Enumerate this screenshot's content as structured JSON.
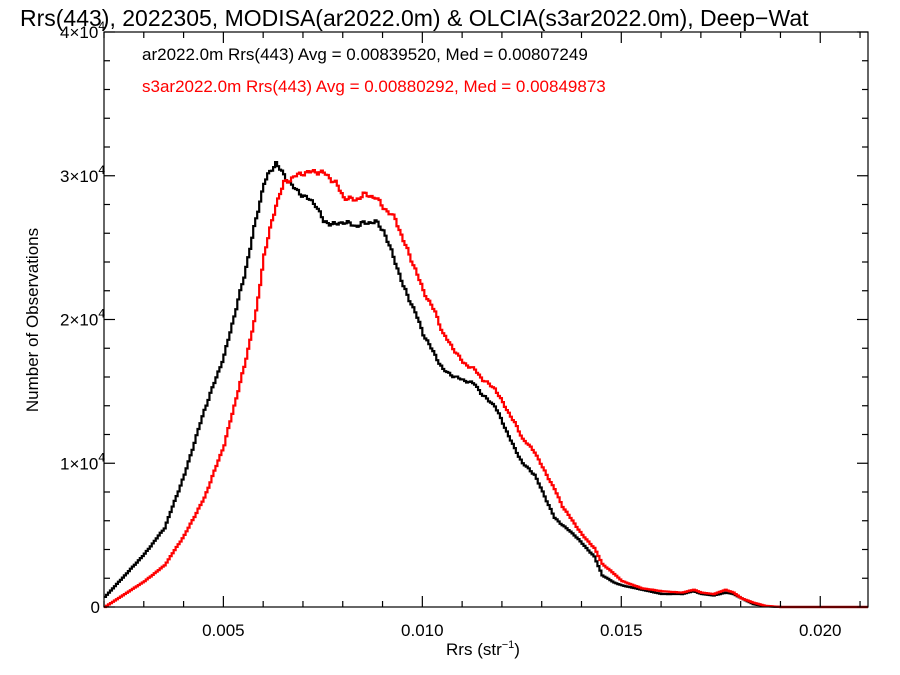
{
  "chart_data": {
    "type": "line",
    "step": true,
    "title": "Rrs(443), 2022305, MODISA(ar2022.0m) & OLCIA(s3ar2022.0m), Deep−Wat",
    "xlabel": "Rrs (str",
    "xlabel_sup": "−1",
    "xlabel_end": ")",
    "ylabel": "Number of Observations",
    "xlim": [
      0.002,
      0.0212
    ],
    "ylim": [
      0,
      40000
    ],
    "xticks": [
      {
        "v": 0.005,
        "label": "0.005"
      },
      {
        "v": 0.01,
        "label": "0.010"
      },
      {
        "v": 0.015,
        "label": "0.015"
      },
      {
        "v": 0.02,
        "label": "0.020"
      }
    ],
    "yticks": [
      {
        "v": 0,
        "label": "0"
      },
      {
        "v": 10000,
        "mant": "1×10",
        "exp": "4"
      },
      {
        "v": 20000,
        "mant": "2×10",
        "exp": "4"
      },
      {
        "v": 30000,
        "mant": "3×10",
        "exp": "4"
      },
      {
        "v": 40000,
        "mant": "4×10",
        "exp": "4"
      }
    ],
    "legend_placement": "top-left",
    "series": [
      {
        "name": "ar2022.0m Rrs(443)",
        "label": "ar2022.0m Rrs(443) Avg = 0.00839520, Med = 0.00807249",
        "color": "#000000",
        "points": [
          [
            0.002,
            700
          ],
          [
            0.0025,
            2200
          ],
          [
            0.003,
            3700
          ],
          [
            0.0035,
            5500
          ],
          [
            0.004,
            9200
          ],
          [
            0.0045,
            13700
          ],
          [
            0.005,
            17500
          ],
          [
            0.0055,
            23000
          ],
          [
            0.0058,
            27000
          ],
          [
            0.006,
            29500
          ],
          [
            0.0062,
            30500
          ],
          [
            0.0063,
            30900
          ],
          [
            0.0065,
            30000
          ],
          [
            0.0068,
            29000
          ],
          [
            0.007,
            28600
          ],
          [
            0.0073,
            28000
          ],
          [
            0.0075,
            26800
          ],
          [
            0.0078,
            26600
          ],
          [
            0.008,
            26800
          ],
          [
            0.0083,
            26500
          ],
          [
            0.0085,
            26700
          ],
          [
            0.0088,
            26800
          ],
          [
            0.009,
            26200
          ],
          [
            0.0093,
            24000
          ],
          [
            0.0095,
            22300
          ],
          [
            0.0098,
            20500
          ],
          [
            0.01,
            19000
          ],
          [
            0.0103,
            17500
          ],
          [
            0.0105,
            16500
          ],
          [
            0.0108,
            16000
          ],
          [
            0.011,
            15800
          ],
          [
            0.0113,
            15500
          ],
          [
            0.0115,
            14700
          ],
          [
            0.0118,
            14000
          ],
          [
            0.012,
            12800
          ],
          [
            0.0123,
            11000
          ],
          [
            0.0125,
            10000
          ],
          [
            0.0128,
            9200
          ],
          [
            0.013,
            8000
          ],
          [
            0.0133,
            6200
          ],
          [
            0.0135,
            5700
          ],
          [
            0.0138,
            5000
          ],
          [
            0.014,
            4400
          ],
          [
            0.0143,
            3500
          ],
          [
            0.0145,
            2200
          ],
          [
            0.0148,
            1700
          ],
          [
            0.015,
            1500
          ],
          [
            0.0155,
            1200
          ],
          [
            0.016,
            900
          ],
          [
            0.0165,
            900
          ],
          [
            0.0168,
            1100
          ],
          [
            0.017,
            900
          ],
          [
            0.0173,
            800
          ],
          [
            0.0176,
            1000
          ],
          [
            0.0178,
            900
          ],
          [
            0.018,
            600
          ],
          [
            0.0183,
            200
          ],
          [
            0.0186,
            50
          ],
          [
            0.019,
            0
          ],
          [
            0.0212,
            0
          ]
        ]
      },
      {
        "name": "s3ar2022.0m Rrs(443)",
        "label": "s3ar2022.0m Rrs(443) Avg = 0.00880292, Med = 0.00849873",
        "color": "#ff0000",
        "points": [
          [
            0.002,
            0
          ],
          [
            0.0025,
            900
          ],
          [
            0.003,
            1800
          ],
          [
            0.0035,
            2900
          ],
          [
            0.004,
            5000
          ],
          [
            0.0045,
            7600
          ],
          [
            0.005,
            11300
          ],
          [
            0.0055,
            16700
          ],
          [
            0.0058,
            20500
          ],
          [
            0.006,
            24500
          ],
          [
            0.0063,
            28000
          ],
          [
            0.0065,
            29500
          ],
          [
            0.0068,
            30000
          ],
          [
            0.007,
            30200
          ],
          [
            0.0073,
            30300
          ],
          [
            0.0075,
            30200
          ],
          [
            0.0078,
            29500
          ],
          [
            0.008,
            28500
          ],
          [
            0.0083,
            28300
          ],
          [
            0.0085,
            28700
          ],
          [
            0.0088,
            28500
          ],
          [
            0.009,
            27800
          ],
          [
            0.0093,
            27000
          ],
          [
            0.0095,
            25500
          ],
          [
            0.0098,
            23500
          ],
          [
            0.01,
            22000
          ],
          [
            0.0103,
            20500
          ],
          [
            0.0105,
            19000
          ],
          [
            0.0108,
            17800
          ],
          [
            0.011,
            17000
          ],
          [
            0.0113,
            16500
          ],
          [
            0.0115,
            15800
          ],
          [
            0.0118,
            15200
          ],
          [
            0.012,
            14200
          ],
          [
            0.0123,
            12800
          ],
          [
            0.0125,
            11700
          ],
          [
            0.0128,
            10800
          ],
          [
            0.013,
            9700
          ],
          [
            0.0133,
            8200
          ],
          [
            0.0135,
            7000
          ],
          [
            0.0138,
            5800
          ],
          [
            0.014,
            5000
          ],
          [
            0.0143,
            4100
          ],
          [
            0.0145,
            3000
          ],
          [
            0.0148,
            2300
          ],
          [
            0.015,
            1800
          ],
          [
            0.0155,
            1300
          ],
          [
            0.016,
            1100
          ],
          [
            0.0165,
            1000
          ],
          [
            0.0168,
            1200
          ],
          [
            0.017,
            1000
          ],
          [
            0.0173,
            900
          ],
          [
            0.0176,
            1200
          ],
          [
            0.0178,
            1000
          ],
          [
            0.018,
            600
          ],
          [
            0.0183,
            300
          ],
          [
            0.0186,
            80
          ],
          [
            0.019,
            0
          ],
          [
            0.0212,
            0
          ]
        ]
      }
    ]
  }
}
